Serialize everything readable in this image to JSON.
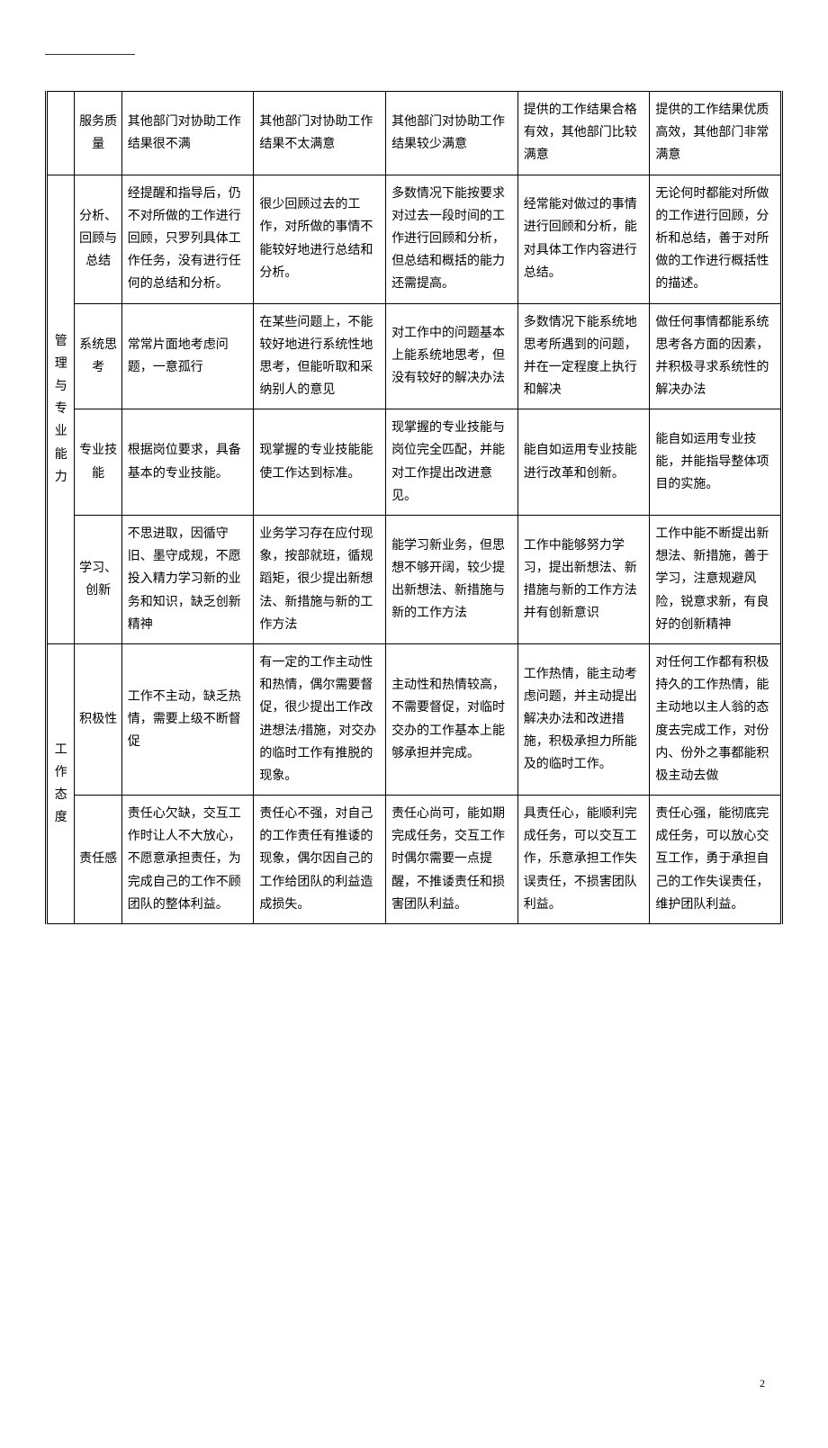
{
  "pageNumber": "2",
  "rows": [
    {
      "category": "",
      "sub": "服务质量",
      "cells": [
        "其他部门对协助工作结果很不满",
        "其他部门对协助工作结果不太满意",
        "其他部门对协助工作结果较少满意",
        "提供的工作结果合格有效，其他部门比较满意",
        "提供的工作结果优质高效，其他部门非常满意"
      ]
    },
    {
      "category": "管理与专业能力",
      "sub": "分析、回顾与总结",
      "cells": [
        "经提醒和指导后，仍不对所做的工作进行回顾，只罗列具体工作任务，没有进行任何的总结和分析。",
        "很少回顾过去的工作，对所做的事情不能较好地进行总结和分析。",
        "多数情况下能按要求对过去一段时间的工作进行回顾和分析，但总结和概括的能力还需提高。",
        "经常能对做过的事情进行回顾和分析，能对具体工作内容进行总结。",
        "无论何时都能对所做的工作进行回顾，分析和总结，善于对所做的工作进行概括性的描述。"
      ]
    },
    {
      "category": "",
      "sub": "系统思考",
      "cells": [
        "常常片面地考虑问题，一意孤行",
        "在某些问题上，不能较好地进行系统性地思考，但能听取和采纳别人的意见",
        "对工作中的问题基本上能系统地思考，但没有较好的解决办法",
        "多数情况下能系统地思考所遇到的问题，并在一定程度上执行和解决",
        "做任何事情都能系统思考各方面的因素，并积极寻求系统性的解决办法"
      ]
    },
    {
      "category": "",
      "sub": "专业技能",
      "cells": [
        "根据岗位要求，具备基本的专业技能。",
        "现掌握的专业技能能使工作达到标准。",
        "现掌握的专业技能与岗位完全匹配，并能对工作提出改进意见。",
        "能自如运用专业技能进行改革和创新。",
        "能自如运用专业技能，并能指导整体项目的实施。"
      ]
    },
    {
      "category": "",
      "sub": "学习、创新",
      "cells": [
        "不思进取，因循守旧、墨守成规，不愿投入精力学习新的业务和知识，缺乏创新精神",
        "业务学习存在应付现象，按部就班，循规蹈矩，很少提出新想法、新措施与新的工作方法",
        "能学习新业务，但思想不够开阔，较少提出新想法、新措施与新的工作方法",
        "工作中能够努力学习，提出新想法、新措施与新的工作方法并有创新意识",
        "工作中能不断提出新想法、新措施，善于学习，注意规避风险，锐意求新，有良好的创新精神"
      ]
    },
    {
      "category": "工作态度",
      "sub": "积极性",
      "cells": [
        "工作不主动，缺乏热情，需要上级不断督促",
        "有一定的工作主动性和热情，偶尔需要督促，很少提出工作改进想法/措施，对交办的临时工作有推脱的现象。",
        "主动性和热情较高，不需要督促，对临时交办的工作基本上能够承担并完成。",
        "工作热情，能主动考虑问题，并主动提出解决办法和改进措施，积极承担力所能及的临时工作。",
        "对任何工作都有积极持久的工作热情，能主动地以主人翁的态度去完成工作，对份内、份外之事都能积极主动去做"
      ]
    },
    {
      "category": "",
      "sub": "责任感",
      "cells": [
        "责任心欠缺，交互工作时让人不大放心，不愿意承担责任，为完成自己的工作不顾团队的整体利益。",
        "责任心不强，对自己的工作责任有推诿的现象，偶尔因自己的工作给团队的利益造成损失。",
        "责任心尚可，能如期完成任务，交互工作时偶尔需要一点提醒，不推诿责任和损害团队利益。",
        "具责任心，能顺利完成任务，可以交互工作，乐意承担工作失误责任，不损害团队利益。",
        "责任心强，能彻底完成任务，可以放心交互工作，勇于承担自己的工作失误责任，维护团队利益。"
      ]
    }
  ]
}
